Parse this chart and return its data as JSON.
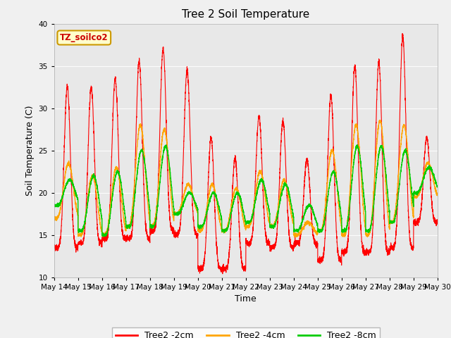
{
  "title": "Tree 2 Soil Temperature",
  "xlabel": "Time",
  "ylabel": "Soil Temperature (C)",
  "ylim": [
    10,
    40
  ],
  "yticks": [
    10,
    15,
    20,
    25,
    30,
    35,
    40
  ],
  "legend_label": "TZ_soilco2",
  "series_labels": [
    "Tree2 -2cm",
    "Tree2 -4cm",
    "Tree2 -8cm"
  ],
  "series_colors": [
    "#ff0000",
    "#ffa500",
    "#00cc00"
  ],
  "fig_facecolor": "#f0f0f0",
  "ax_facecolor": "#e8e8e8",
  "n_days": 16,
  "start_day": 14,
  "points_per_day": 288,
  "day_peaks_2cm": [
    32.5,
    32.5,
    33.5,
    35.5,
    37.0,
    34.5,
    26.5,
    24.0,
    29.0,
    28.5,
    24.0,
    31.5,
    35.0,
    35.5,
    38.5,
    26.5
  ],
  "day_mins_2cm": [
    13.5,
    14.0,
    14.5,
    14.5,
    15.5,
    15.0,
    11.0,
    11.0,
    14.0,
    13.5,
    14.0,
    12.0,
    13.0,
    13.0,
    13.5,
    16.5
  ],
  "day_peaks_4cm": [
    23.5,
    22.0,
    23.0,
    28.0,
    27.5,
    21.0,
    21.0,
    20.5,
    22.5,
    21.5,
    16.5,
    25.0,
    28.0,
    28.5,
    28.0,
    23.5
  ],
  "day_mins_4cm": [
    17.0,
    15.0,
    15.0,
    16.0,
    16.0,
    17.5,
    15.5,
    15.5,
    16.0,
    16.0,
    15.0,
    15.5,
    15.0,
    15.0,
    16.5,
    19.5
  ],
  "day_peaks_8cm": [
    21.5,
    22.0,
    22.5,
    25.0,
    25.5,
    20.0,
    20.0,
    20.0,
    21.5,
    21.0,
    18.5,
    22.5,
    25.5,
    25.5,
    25.0,
    23.0
  ],
  "day_mins_8cm": [
    18.5,
    15.5,
    15.0,
    16.0,
    16.0,
    17.5,
    16.0,
    15.5,
    16.5,
    16.0,
    15.5,
    15.5,
    15.5,
    15.5,
    16.5,
    20.0
  ],
  "peak_time_2cm": 0.55,
  "peak_time_4cm": 0.6,
  "peak_time_8cm": 0.65,
  "sharpness_2cm": 6.0,
  "sharpness_4cm": 2.5,
  "sharpness_8cm": 2.0
}
